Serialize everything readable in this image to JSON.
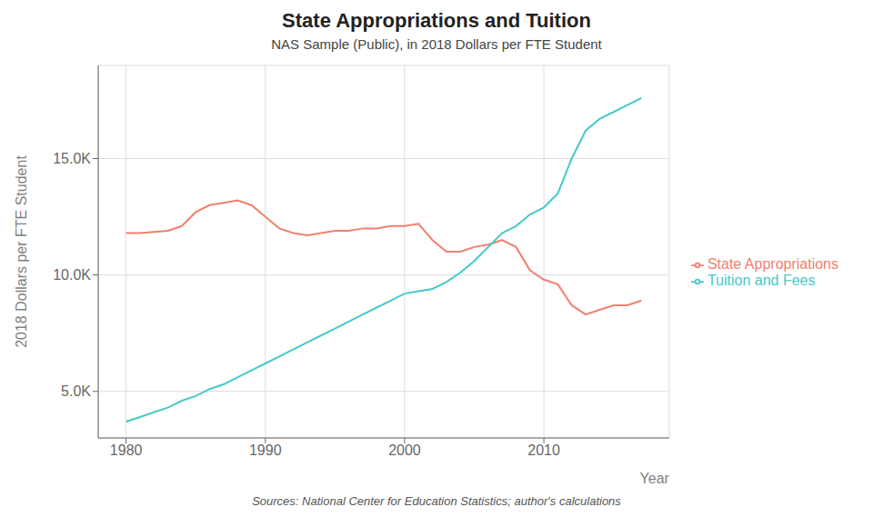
{
  "chart_data": {
    "type": "line",
    "title": "State Appropriations and Tuition",
    "subtitle": "NAS Sample (Public), in 2018 Dollars per FTE Student",
    "ylabel": "2018 Dollars per FTE Student",
    "xlabel": "Year",
    "footnote": "Sources: National Center for Education Statistics; author's calculations",
    "x": [
      1980,
      1981,
      1982,
      1983,
      1984,
      1985,
      1986,
      1987,
      1988,
      1989,
      1990,
      1991,
      1992,
      1993,
      1994,
      1995,
      1996,
      1997,
      1998,
      1999,
      2000,
      2001,
      2002,
      2003,
      2004,
      2005,
      2006,
      2007,
      2008,
      2009,
      2010,
      2011,
      2012,
      2013,
      2014,
      2015,
      2016,
      2017
    ],
    "series": [
      {
        "name": "State Appropriations",
        "color": "#F08070",
        "values": [
          11800,
          11800,
          11850,
          11900,
          12100,
          12700,
          13000,
          13100,
          13200,
          13000,
          12500,
          12000,
          11800,
          11700,
          11800,
          11900,
          11900,
          12000,
          12000,
          12100,
          12100,
          12200,
          11500,
          11000,
          11000,
          11200,
          11300,
          11500,
          11200,
          10200,
          9800,
          9600,
          8700,
          8300,
          8500,
          8700,
          8700,
          8900
        ]
      },
      {
        "name": "Tuition and Fees",
        "color": "#48C8C8",
        "values": [
          3700,
          3900,
          4100,
          4300,
          4600,
          4800,
          5100,
          5300,
          5600,
          5900,
          6200,
          6500,
          6800,
          7100,
          7400,
          7700,
          8000,
          8300,
          8600,
          8900,
          9200,
          9300,
          9400,
          9700,
          10100,
          10600,
          11200,
          11800,
          12100,
          12600,
          12900,
          13500,
          15000,
          16200,
          16700,
          17000,
          17300,
          17600
        ]
      }
    ],
    "xlim": [
      1978,
      2019
    ],
    "xticks": [
      1980,
      1990,
      2000,
      2010
    ],
    "ylim": [
      3000,
      19000
    ],
    "yticks": [
      {
        "value": 5000,
        "label": "5.0K"
      },
      {
        "value": 10000,
        "label": "10.0K"
      },
      {
        "value": 15000,
        "label": "15.0K"
      }
    ],
    "grid": true,
    "legend": "right"
  }
}
